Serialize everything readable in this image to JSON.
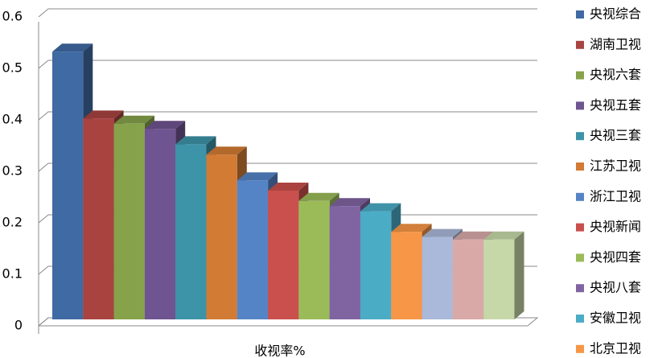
{
  "chart_data": {
    "type": "bar3d",
    "categories": [
      "收视率%"
    ],
    "ylim": [
      0,
      0.6
    ],
    "yticks": [
      0,
      0.1,
      0.2,
      0.3,
      0.4,
      0.5,
      0.6
    ],
    "grid": true,
    "legend": "right",
    "series": [
      {
        "name": "央视综合",
        "color": "#3f6aa3",
        "values": [
          0.52
        ]
      },
      {
        "name": "湖南卫视",
        "color": "#a84340",
        "values": [
          0.39
        ]
      },
      {
        "name": "央视六套",
        "color": "#86a24a",
        "values": [
          0.38
        ]
      },
      {
        "name": "央视五套",
        "color": "#6e5490",
        "values": [
          0.37
        ]
      },
      {
        "name": "央视三套",
        "color": "#3d93a8",
        "values": [
          0.34
        ]
      },
      {
        "name": "江苏卫视",
        "color": "#d27b34",
        "values": [
          0.32
        ]
      },
      {
        "name": "浙江卫视",
        "color": "#5584c6",
        "values": [
          0.27
        ]
      },
      {
        "name": "央视新闻",
        "color": "#c9504c",
        "values": [
          0.25
        ]
      },
      {
        "name": "央视四套",
        "color": "#9bbb59",
        "values": [
          0.23
        ]
      },
      {
        "name": "央视八套",
        "color": "#8064a2",
        "values": [
          0.22
        ]
      },
      {
        "name": "安徽卫视",
        "color": "#4bacc6",
        "values": [
          0.21
        ]
      },
      {
        "name": "北京卫视",
        "color": "#f79646",
        "values": [
          0.17
        ]
      },
      {
        "name": null,
        "color": "#aab9d9",
        "values": [
          0.16
        ]
      },
      {
        "name": null,
        "color": "#d9a9a8",
        "values": [
          0.155
        ]
      },
      {
        "name": null,
        "color": "#c6d8a8",
        "values": [
          0.155
        ]
      }
    ]
  }
}
